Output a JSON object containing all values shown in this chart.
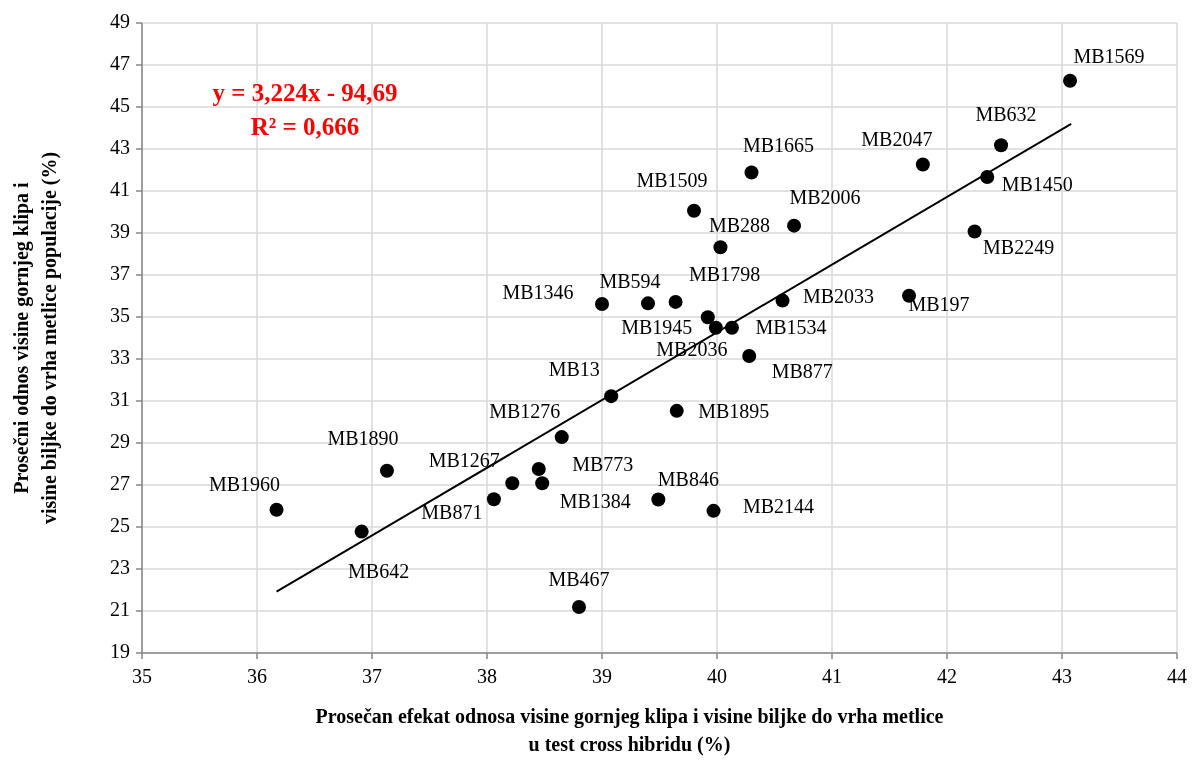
{
  "chart_data": {
    "type": "scatter",
    "xlabel": "Prosečan efekat odnosa visine gornjeg klipa i visine biljke do vrha metlice\nu test cross hibridu (%)",
    "ylabel": "Prosečni odnos visine gornjeg klipa i\nvisine biljke do vrha metlice populacije (%)",
    "annotations": [
      "y = 3,224x - 94,69",
      "R² = 0,666"
    ],
    "xlim": [
      35,
      44
    ],
    "xticks": [
      35,
      36,
      37,
      38,
      39,
      40,
      41,
      42,
      43,
      44
    ],
    "ylim": [
      19,
      49
    ],
    "yticks": [
      19,
      21,
      23,
      25,
      27,
      29,
      31,
      33,
      35,
      37,
      39,
      41,
      43,
      45,
      47,
      49
    ],
    "grid": true,
    "series": [
      {
        "color": "#000000",
        "marker": "circle",
        "x": [
          36.17,
          36.91,
          37.13,
          38.06,
          38.22,
          38.48,
          38.45,
          38.65,
          38.8,
          39.08,
          39.0,
          39.4,
          39.49,
          39.64,
          39.65,
          39.8,
          39.92,
          39.99,
          39.97,
          40.03,
          40.13,
          40.28,
          40.3,
          40.57,
          40.67,
          41.67,
          41.79,
          42.24,
          42.35,
          42.47,
          43.07
        ],
        "values": [
          25.82,
          24.78,
          27.68,
          26.32,
          27.08,
          27.08,
          27.76,
          29.28,
          21.19,
          31.23,
          35.62,
          35.65,
          26.31,
          35.72,
          30.53,
          40.06,
          34.99,
          34.49,
          25.77,
          38.32,
          34.49,
          33.14,
          41.88,
          35.78,
          39.35,
          36.01,
          42.26,
          39.07,
          41.67,
          43.18,
          46.25
        ],
        "value_labels": [
          "MB1960",
          "MB642",
          "MB1890",
          "MB871",
          "MB1267",
          "MB1384",
          "MB773",
          "MB1276",
          "MB467",
          "MB13",
          "MB1346",
          "MB594",
          "MB846",
          "MB1798",
          "MB1895",
          "MB1509",
          "MB1945",
          "MB2036",
          "MB2144",
          "MB288",
          "MB1534",
          "MB877",
          "MB1665",
          "MB2033",
          "MB2006",
          "MB197",
          "MB2047",
          "MB2249",
          "MB1450",
          "MB632",
          "MB1569"
        ]
      },
      {
        "type": "line",
        "color": "#000000",
        "x": [
          36.17,
          43.08
        ],
        "values": [
          21.92,
          44.2
        ]
      }
    ]
  }
}
